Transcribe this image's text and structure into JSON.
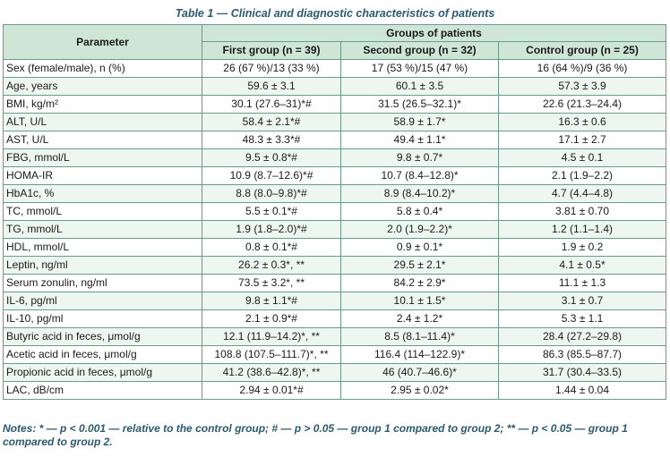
{
  "caption": "Table 1 — Clinical and diagnostic characteristics of patients",
  "header": {
    "parameter": "Parameter",
    "groups": "Groups of patients",
    "columns": [
      "First group (n = 39)",
      "Second group (n = 32)",
      "Control group (n = 25)"
    ]
  },
  "rows": [
    {
      "parameter": "Sex (female/male), n (%)",
      "values": [
        "26 (67 %)/13 (33 %)",
        "17 (53 %)/15 (47 %)",
        "16 (64 %)/9 (36 %)"
      ]
    },
    {
      "parameter": "Age, years",
      "values": [
        "59.6 ± 3.1",
        "60.1 ± 3.5",
        "57.3 ± 3.9"
      ]
    },
    {
      "parameter": "BMI, kg/m²",
      "values": [
        "30.1 (27.6–31)*#",
        "31.5 (26.5–32.1)*",
        "22.6 (21.3–24.4)"
      ]
    },
    {
      "parameter": "ALT, U/L",
      "values": [
        "58.4 ± 2.1*#",
        "58.9 ± 1.7*",
        "16.3 ± 0.6"
      ]
    },
    {
      "parameter": "AST, U/L",
      "values": [
        "48.3 ± 3.3*#",
        "49.4 ± 1.1*",
        "17.1 ± 2.7"
      ]
    },
    {
      "parameter": "FBG, mmol/L",
      "values": [
        "9.5 ± 0.8*#",
        "9.8 ± 0.7*",
        "4.5 ± 0.1"
      ]
    },
    {
      "parameter": "HOMA-IR",
      "values": [
        "10.9 (8.7–12.6)*#",
        "10.7 (8.4–12.8)*",
        "2.1 (1.9–2.2)"
      ]
    },
    {
      "parameter": "HbA1c, %",
      "values": [
        "8.8 (8.0–9.8)*#",
        "8.9 (8.4–10.2)*",
        "4.7 (4.4–4.8)"
      ]
    },
    {
      "parameter": "TC, mmol/L",
      "values": [
        "5.5 ± 0.1*#",
        "5.8 ± 0.4*",
        "3.81 ± 0.70"
      ]
    },
    {
      "parameter": "TG, mmol/L",
      "values": [
        "1.9 (1.8–2.0)*#",
        "2.0 (1.9–2.2)*",
        "1.2 (1.1–1.4)"
      ]
    },
    {
      "parameter": "HDL, mmol/L",
      "values": [
        "0.8 ± 0.1*#",
        "0.9 ± 0.1*",
        "1.9 ± 0.2"
      ]
    },
    {
      "parameter": "Leptin, ng/ml",
      "values": [
        "26.2 ± 0.3*, **",
        "29.5 ± 2.1*",
        "4.1 ± 0.5*"
      ]
    },
    {
      "parameter": "Serum zonulin, ng/ml",
      "values": [
        "73.5 ± 3.2*, **",
        "84.2 ± 2.9*",
        "11.1 ± 1.3"
      ]
    },
    {
      "parameter": "IL-6, pg/ml",
      "values": [
        "9.8 ± 1.1*#",
        "10.1 ± 1.5*",
        "3.1 ± 0.7"
      ]
    },
    {
      "parameter": "IL-10, pg/ml",
      "values": [
        "2.1 ± 0.9*#",
        "2.4 ± 1.2*",
        "5.3 ± 1.1"
      ]
    },
    {
      "parameter": "Butyric acid in feces, μmol/g",
      "values": [
        "12.1 (11.9–14.2)*, **",
        "8.5 (8.1–11.4)*",
        "28.4 (27.2–29.8)"
      ]
    },
    {
      "parameter": "Acetic acid in feces, μmol/g",
      "values": [
        "108.8 (107.5–111.7)*, **",
        "116.4 (114–122.9)*",
        "86.3 (85.5–87.7)"
      ]
    },
    {
      "parameter": "Propionic acid in feces, μmol/g",
      "values": [
        "41.2 (38.6–42.8)*, **",
        "46 (40.7–46.6)*",
        "31.7 (30.4–33.5)"
      ]
    },
    {
      "parameter": "LAC, dB/cm",
      "values": [
        "2.94 ± 0.01*#",
        "2.95 ± 0.02*",
        "1.44 ± 0.04"
      ]
    }
  ],
  "notes": "Notes: * — p < 0.001 — relative to the control group; # — p > 0.05 — group 1 compared to group 2; ** — p < 0.05 — group 1 compared to group 2."
}
